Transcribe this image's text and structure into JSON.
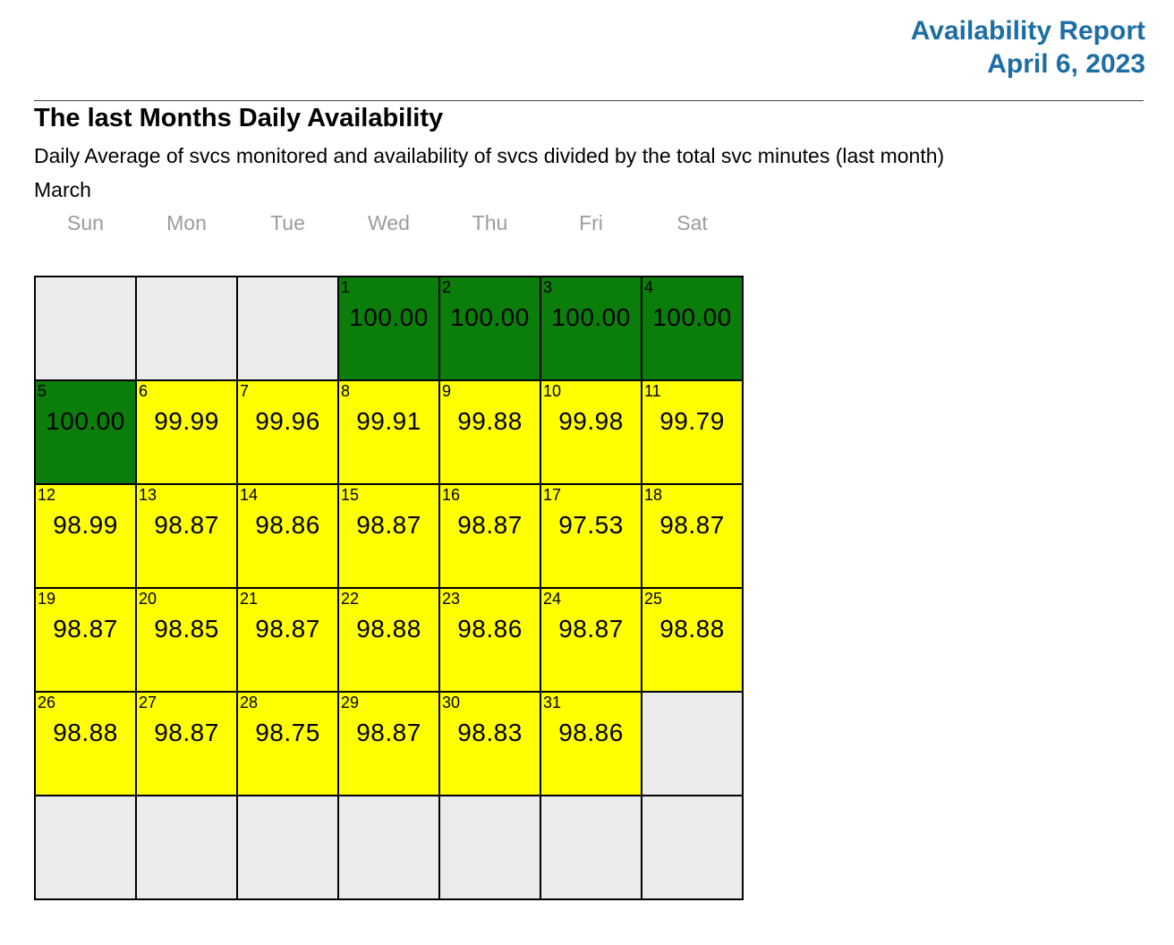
{
  "header": {
    "report_title": "Availability Report",
    "report_date": "April 6, 2023"
  },
  "section": {
    "title": "The last Months Daily Availability",
    "subtitle": "Daily Average of svcs monitored and availability of svcs divided by the total svc minutes (last month)",
    "month_label": "March"
  },
  "weekdays": [
    "Sun",
    "Mon",
    "Tue",
    "Wed",
    "Thu",
    "Fri",
    "Sat"
  ],
  "colors": {
    "accent_blue": "#1C6EA4",
    "green_full_availability": "#0B7D0B",
    "yellow_partial_availability": "#FFFF00",
    "empty_cell_gray": "#EBEBEB"
  },
  "calendar": {
    "month": "March",
    "cells": [
      {
        "state": "empty"
      },
      {
        "state": "empty"
      },
      {
        "state": "empty"
      },
      {
        "state": "green",
        "day": "1",
        "value": "100.00"
      },
      {
        "state": "green",
        "day": "2",
        "value": "100.00"
      },
      {
        "state": "green",
        "day": "3",
        "value": "100.00"
      },
      {
        "state": "green",
        "day": "4",
        "value": "100.00"
      },
      {
        "state": "green",
        "day": "5",
        "value": "100.00"
      },
      {
        "state": "yellow",
        "day": "6",
        "value": "99.99"
      },
      {
        "state": "yellow",
        "day": "7",
        "value": "99.96"
      },
      {
        "state": "yellow",
        "day": "8",
        "value": "99.91"
      },
      {
        "state": "yellow",
        "day": "9",
        "value": "99.88"
      },
      {
        "state": "yellow",
        "day": "10",
        "value": "99.98"
      },
      {
        "state": "yellow",
        "day": "11",
        "value": "99.79"
      },
      {
        "state": "yellow",
        "day": "12",
        "value": "98.99"
      },
      {
        "state": "yellow",
        "day": "13",
        "value": "98.87"
      },
      {
        "state": "yellow",
        "day": "14",
        "value": "98.86"
      },
      {
        "state": "yellow",
        "day": "15",
        "value": "98.87"
      },
      {
        "state": "yellow",
        "day": "16",
        "value": "98.87"
      },
      {
        "state": "yellow",
        "day": "17",
        "value": "97.53"
      },
      {
        "state": "yellow",
        "day": "18",
        "value": "98.87"
      },
      {
        "state": "yellow",
        "day": "19",
        "value": "98.87"
      },
      {
        "state": "yellow",
        "day": "20",
        "value": "98.85"
      },
      {
        "state": "yellow",
        "day": "21",
        "value": "98.87"
      },
      {
        "state": "yellow",
        "day": "22",
        "value": "98.88"
      },
      {
        "state": "yellow",
        "day": "23",
        "value": "98.86"
      },
      {
        "state": "yellow",
        "day": "24",
        "value": "98.87"
      },
      {
        "state": "yellow",
        "day": "25",
        "value": "98.88"
      },
      {
        "state": "yellow",
        "day": "26",
        "value": "98.88"
      },
      {
        "state": "yellow",
        "day": "27",
        "value": "98.87"
      },
      {
        "state": "yellow",
        "day": "28",
        "value": "98.75"
      },
      {
        "state": "yellow",
        "day": "29",
        "value": "98.87"
      },
      {
        "state": "yellow",
        "day": "30",
        "value": "98.83"
      },
      {
        "state": "yellow",
        "day": "31",
        "value": "98.86"
      },
      {
        "state": "empty"
      },
      {
        "state": "empty"
      },
      {
        "state": "empty"
      },
      {
        "state": "empty"
      },
      {
        "state": "empty"
      },
      {
        "state": "empty"
      },
      {
        "state": "empty"
      },
      {
        "state": "empty"
      }
    ]
  }
}
